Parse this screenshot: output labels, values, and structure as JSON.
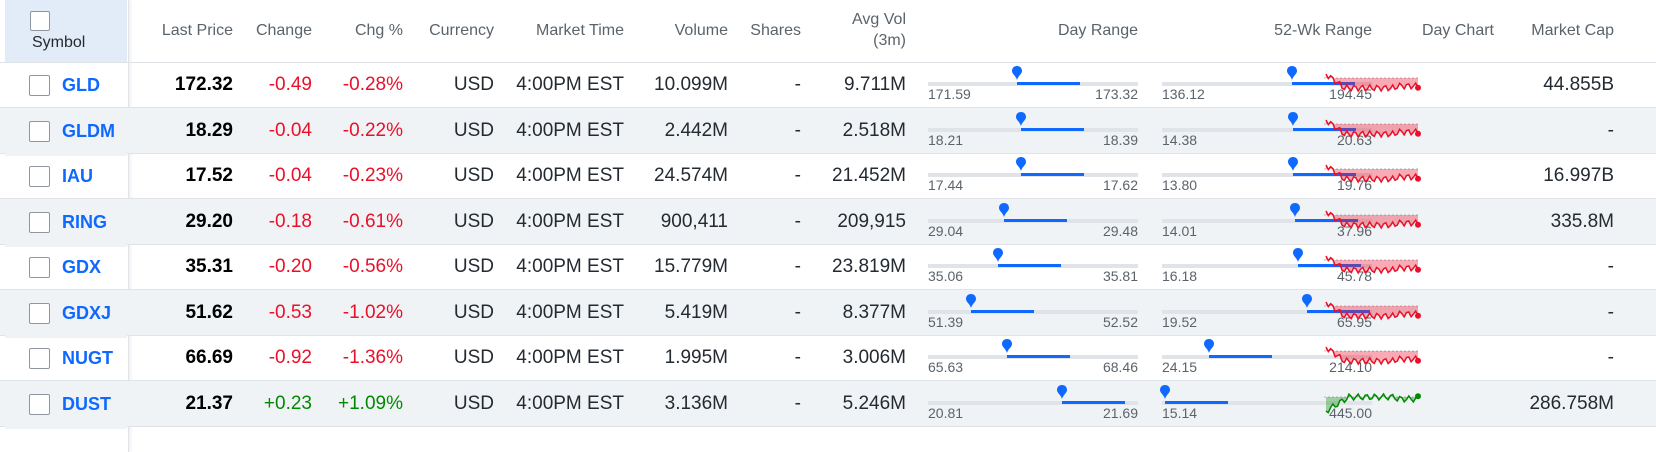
{
  "header": {
    "symbol": "Symbol",
    "last_price": "Last Price",
    "change": "Change",
    "chg_pct": "Chg %",
    "currency": "Currency",
    "market_time": "Market Time",
    "volume": "Volume",
    "shares": "Shares",
    "avg_vol_line1": "Avg Vol",
    "avg_vol_line2": "(3m)",
    "day_range": "Day Range",
    "wk52_range": "52-Wk Range",
    "day_chart": "Day Chart",
    "market_cap": "Market Cap"
  },
  "colors": {
    "positive": "#008a00",
    "negative": "#eb0f29",
    "link": "#0f69ff",
    "range_fill": "#0f69ff"
  },
  "rows": [
    {
      "symbol": "GLD",
      "last": "172.32",
      "change": "-0.49",
      "pct": "-0.28%",
      "currency": "USD",
      "time": "4:00PM EST",
      "volume": "10.099M",
      "shares": "-",
      "avgvol": "9.711M",
      "day_lo": "171.59",
      "day_hi": "173.32",
      "wk_lo": "136.12",
      "wk_hi": "194.45",
      "mcap": "44.855B",
      "trend": "down"
    },
    {
      "symbol": "GLDM",
      "last": "18.29",
      "change": "-0.04",
      "pct": "-0.22%",
      "currency": "USD",
      "time": "4:00PM EST",
      "volume": "2.442M",
      "shares": "-",
      "avgvol": "2.518M",
      "day_lo": "18.21",
      "day_hi": "18.39",
      "wk_lo": "14.38",
      "wk_hi": "20.63",
      "mcap": "-",
      "trend": "down"
    },
    {
      "symbol": "IAU",
      "last": "17.52",
      "change": "-0.04",
      "pct": "-0.23%",
      "currency": "USD",
      "time": "4:00PM EST",
      "volume": "24.574M",
      "shares": "-",
      "avgvol": "21.452M",
      "day_lo": "17.44",
      "day_hi": "17.62",
      "wk_lo": "13.80",
      "wk_hi": "19.76",
      "mcap": "16.997B",
      "trend": "down"
    },
    {
      "symbol": "RING",
      "last": "29.20",
      "change": "-0.18",
      "pct": "-0.61%",
      "currency": "USD",
      "time": "4:00PM EST",
      "volume": "900,411",
      "shares": "-",
      "avgvol": "209,915",
      "day_lo": "29.04",
      "day_hi": "29.48",
      "wk_lo": "14.01",
      "wk_hi": "37.96",
      "mcap": "335.8M",
      "trend": "down"
    },
    {
      "symbol": "GDX",
      "last": "35.31",
      "change": "-0.20",
      "pct": "-0.56%",
      "currency": "USD",
      "time": "4:00PM EST",
      "volume": "15.779M",
      "shares": "-",
      "avgvol": "23.819M",
      "day_lo": "35.06",
      "day_hi": "35.81",
      "wk_lo": "16.18",
      "wk_hi": "45.78",
      "mcap": "-",
      "trend": "down"
    },
    {
      "symbol": "GDXJ",
      "last": "51.62",
      "change": "-0.53",
      "pct": "-1.02%",
      "currency": "USD",
      "time": "4:00PM EST",
      "volume": "5.419M",
      "shares": "-",
      "avgvol": "8.377M",
      "day_lo": "51.39",
      "day_hi": "52.52",
      "wk_lo": "19.52",
      "wk_hi": "65.95",
      "mcap": "-",
      "trend": "down"
    },
    {
      "symbol": "NUGT",
      "last": "66.69",
      "change": "-0.92",
      "pct": "-1.36%",
      "currency": "USD",
      "time": "4:00PM EST",
      "volume": "1.995M",
      "shares": "-",
      "avgvol": "3.006M",
      "day_lo": "65.63",
      "day_hi": "68.46",
      "wk_lo": "24.15",
      "wk_hi": "214.10",
      "mcap": "-",
      "trend": "down"
    },
    {
      "symbol": "DUST",
      "last": "21.37",
      "change": "+0.23",
      "pct": "+1.09%",
      "currency": "USD",
      "time": "4:00PM EST",
      "volume": "3.136M",
      "shares": "-",
      "avgvol": "5.246M",
      "day_lo": "20.81",
      "day_hi": "21.69",
      "wk_lo": "15.14",
      "wk_hi": "445.00",
      "mcap": "286.758M",
      "trend": "up"
    }
  ]
}
